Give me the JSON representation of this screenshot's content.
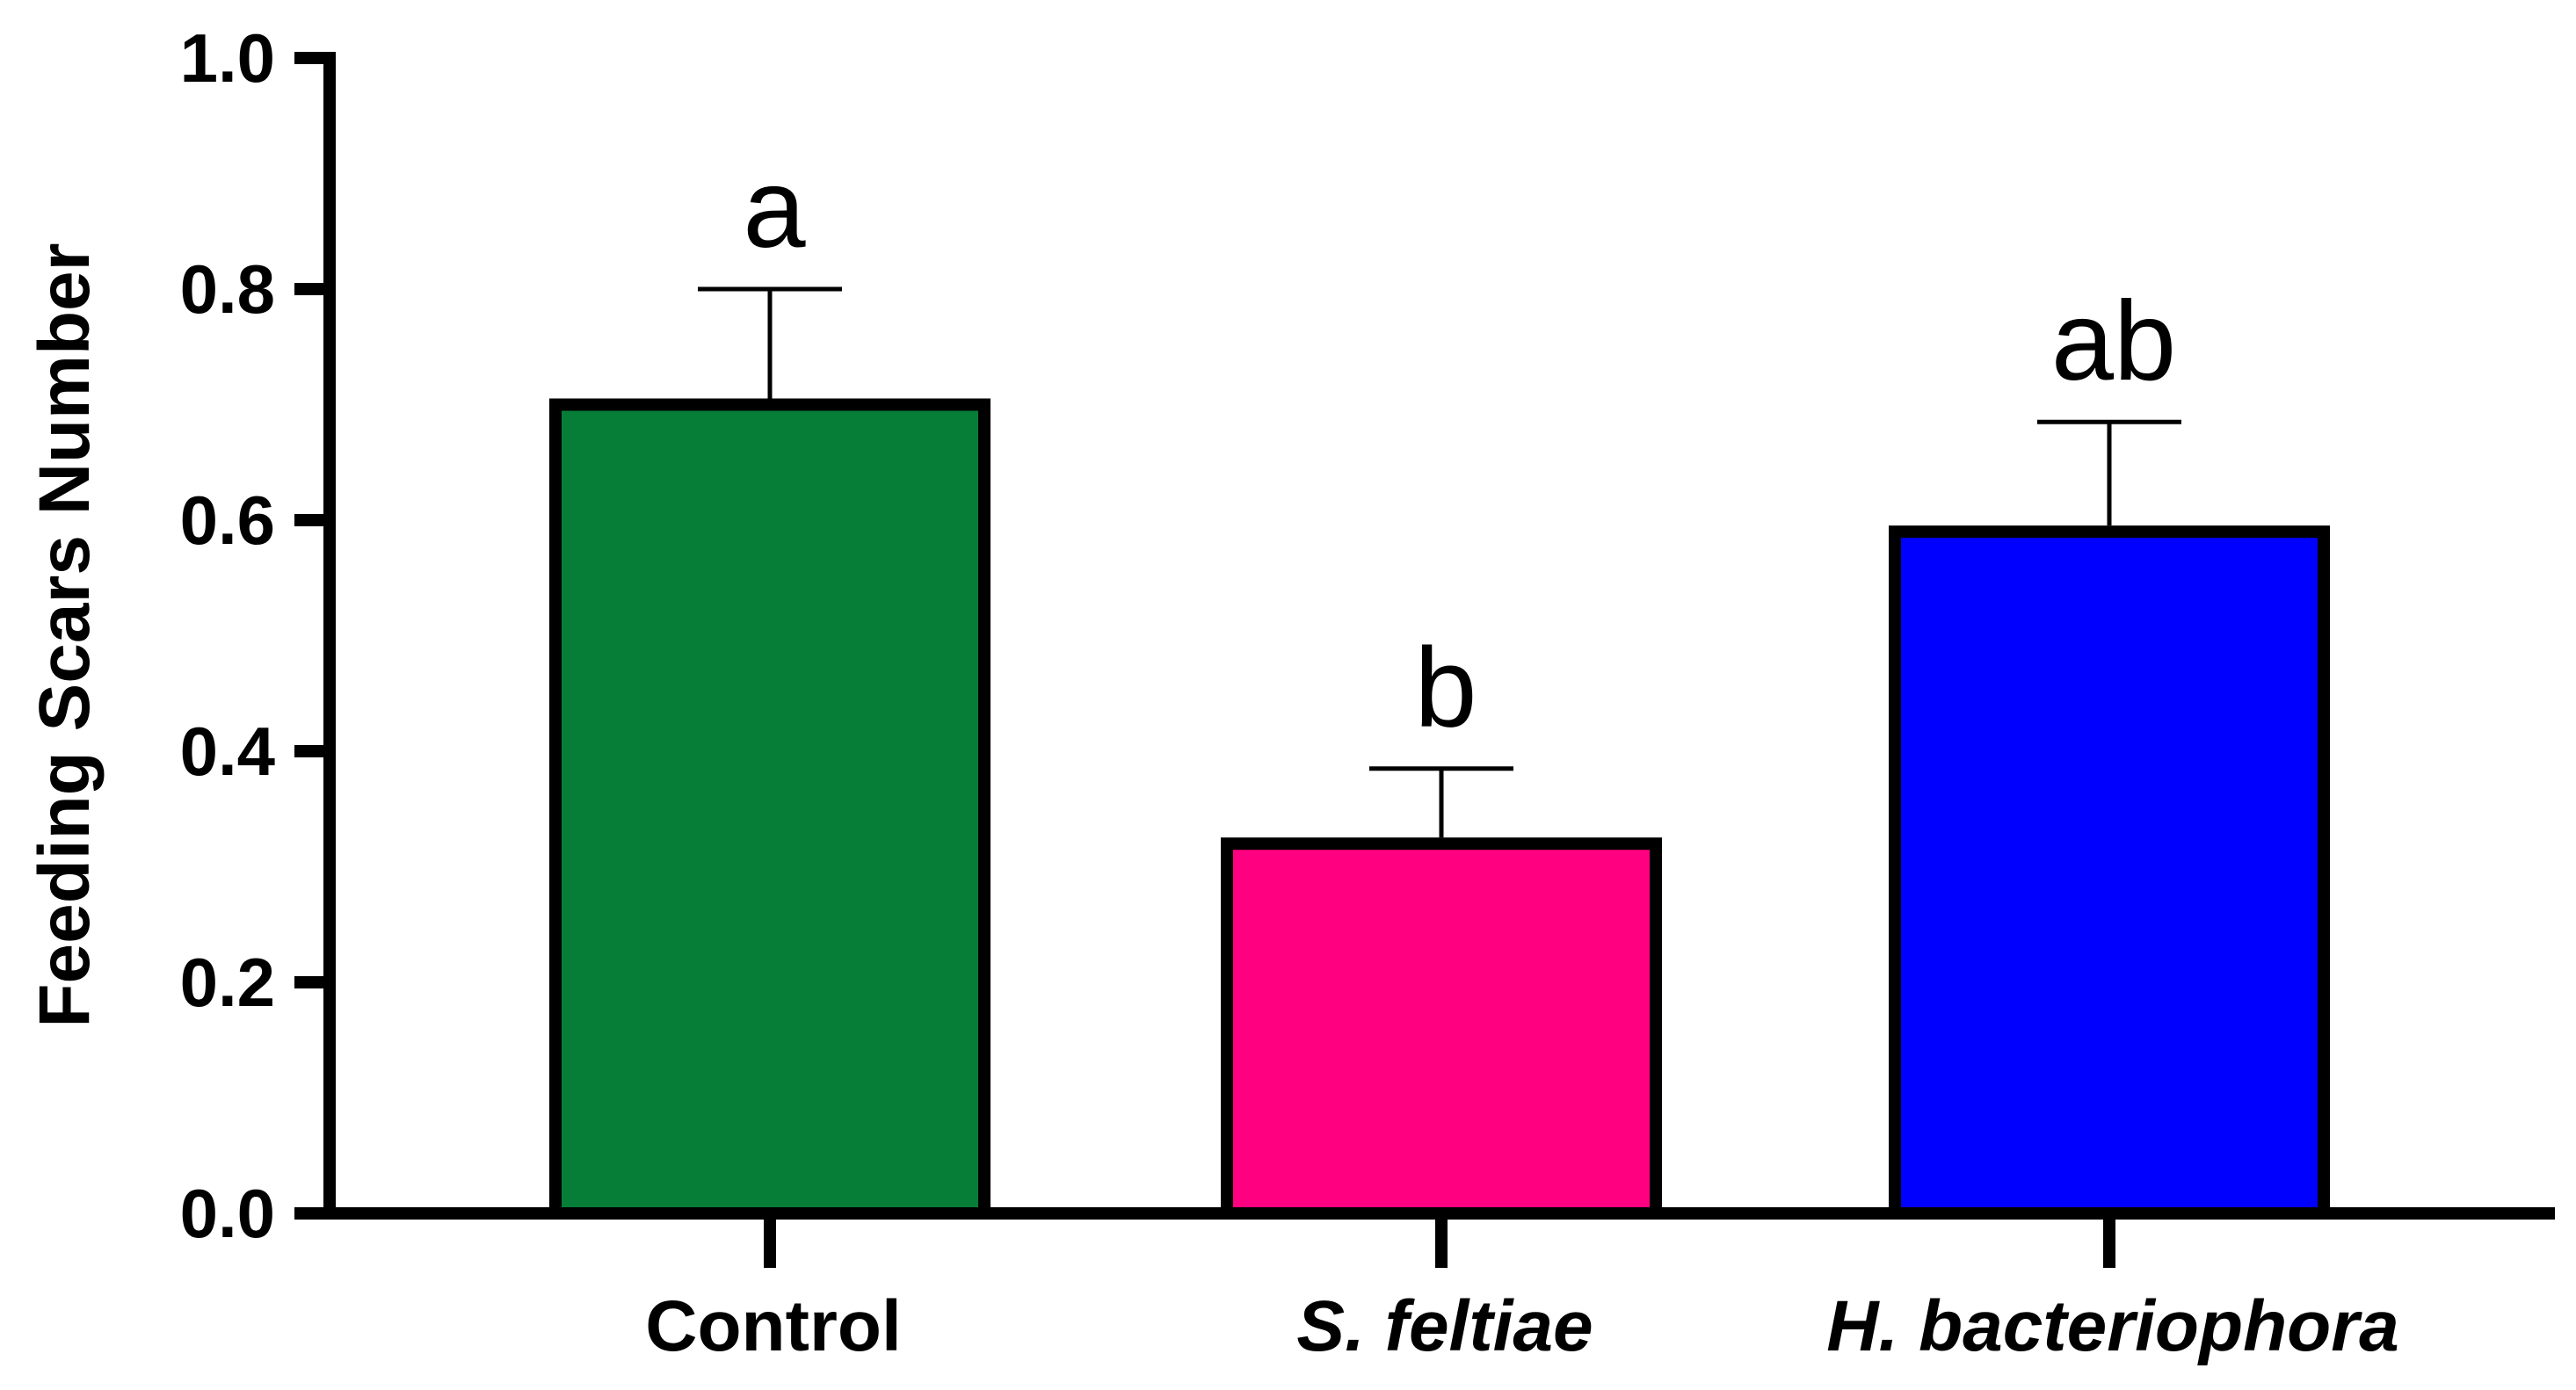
{
  "chart_data": {
    "type": "bar",
    "title": "",
    "xlabel": "",
    "ylabel": "Feeding Scars Number",
    "ylim": [
      0,
      1.0
    ],
    "yticks": [
      "0.0",
      "0.2",
      "0.4",
      "0.6",
      "0.8",
      "1.0"
    ],
    "categories": [
      "Control",
      "S. feltiae",
      "H. bacteriophora"
    ],
    "category_italic": [
      false,
      true,
      true
    ],
    "values": [
      0.7,
      0.32,
      0.59
    ],
    "errors": [
      0.1,
      0.065,
      0.095
    ],
    "significance_letters": [
      "a",
      "b",
      "ab"
    ],
    "colors": [
      "#067e38",
      "#ff0080",
      "#0000ff"
    ]
  }
}
